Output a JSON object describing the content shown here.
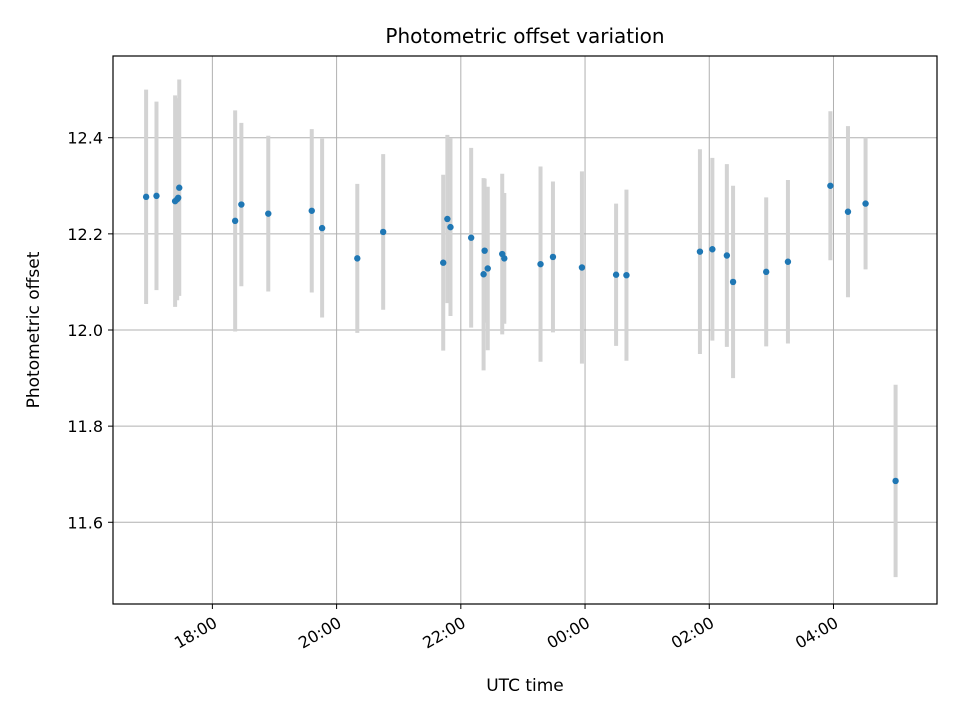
{
  "chart_data": {
    "type": "scatter",
    "title": "Photometric offset variation",
    "xlabel": "UTC time",
    "ylabel": "Photometric offset",
    "grid": true,
    "x_tick_labels": [
      "18:00",
      "20:00",
      "22:00",
      "00:00",
      "02:00",
      "04:00"
    ],
    "y_tick_labels": [
      "11.6",
      "11.8",
      "12.0",
      "12.2",
      "12.4"
    ],
    "x_ticks": [
      "18:00",
      "20:00",
      "22:00",
      "00:00",
      "02:00",
      "04:00"
    ],
    "y_ticks": [
      11.6,
      11.8,
      12.0,
      12.2,
      12.4
    ],
    "xlim": [
      "16:24",
      "05:40"
    ],
    "ylim": [
      11.43,
      12.57
    ],
    "colors": {
      "point": "#1f77b4",
      "errorbar": "#d3d3d3",
      "grid": "#b0b0b0"
    },
    "series": [
      {
        "points": [
          {
            "x": "16:56",
            "y": 12.277,
            "err": 0.223
          },
          {
            "x": "17:06",
            "y": 12.279,
            "err": 0.196
          },
          {
            "x": "17:24",
            "y": 12.268,
            "err": 0.22
          },
          {
            "x": "17:26",
            "y": 12.272,
            "err": 0.21
          },
          {
            "x": "17:27",
            "y": 12.275,
            "err": 0.17
          },
          {
            "x": "17:28",
            "y": 12.296,
            "err": 0.225
          },
          {
            "x": "18:22",
            "y": 12.227,
            "err": 0.23
          },
          {
            "x": "18:28",
            "y": 12.261,
            "err": 0.17
          },
          {
            "x": "18:54",
            "y": 12.242,
            "err": 0.162
          },
          {
            "x": "19:36",
            "y": 12.248,
            "err": 0.17
          },
          {
            "x": "19:46",
            "y": 12.212,
            "err": 0.186
          },
          {
            "x": "20:20",
            "y": 12.149,
            "err": 0.155
          },
          {
            "x": "20:45",
            "y": 12.204,
            "err": 0.162
          },
          {
            "x": "21:43",
            "y": 12.14,
            "err": 0.183
          },
          {
            "x": "21:47",
            "y": 12.231,
            "err": 0.175
          },
          {
            "x": "21:50",
            "y": 12.214,
            "err": 0.185
          },
          {
            "x": "22:10",
            "y": 12.192,
            "err": 0.187
          },
          {
            "x": "22:22",
            "y": 12.116,
            "err": 0.2
          },
          {
            "x": "22:23",
            "y": 12.165,
            "err": 0.15
          },
          {
            "x": "22:26",
            "y": 12.128,
            "err": 0.17
          },
          {
            "x": "22:40",
            "y": 12.158,
            "err": 0.167
          },
          {
            "x": "22:42",
            "y": 12.149,
            "err": 0.136
          },
          {
            "x": "23:17",
            "y": 12.137,
            "err": 0.203
          },
          {
            "x": "23:29",
            "y": 12.152,
            "err": 0.157
          },
          {
            "x": "23:57",
            "y": 12.13,
            "err": 0.2
          },
          {
            "x": "00:30",
            "y": 12.115,
            "err": 0.148
          },
          {
            "x": "00:40",
            "y": 12.114,
            "err": 0.178
          },
          {
            "x": "01:51",
            "y": 12.163,
            "err": 0.213
          },
          {
            "x": "02:03",
            "y": 12.168,
            "err": 0.19
          },
          {
            "x": "02:17",
            "y": 12.155,
            "err": 0.19
          },
          {
            "x": "02:23",
            "y": 12.1,
            "err": 0.2
          },
          {
            "x": "02:55",
            "y": 12.121,
            "err": 0.155
          },
          {
            "x": "03:16",
            "y": 12.142,
            "err": 0.17
          },
          {
            "x": "03:57",
            "y": 12.3,
            "err": 0.155
          },
          {
            "x": "04:14",
            "y": 12.246,
            "err": 0.178
          },
          {
            "x": "04:31",
            "y": 12.263,
            "err": 0.137
          },
          {
            "x": "05:00",
            "y": 11.686,
            "err": 0.2
          }
        ]
      }
    ]
  }
}
